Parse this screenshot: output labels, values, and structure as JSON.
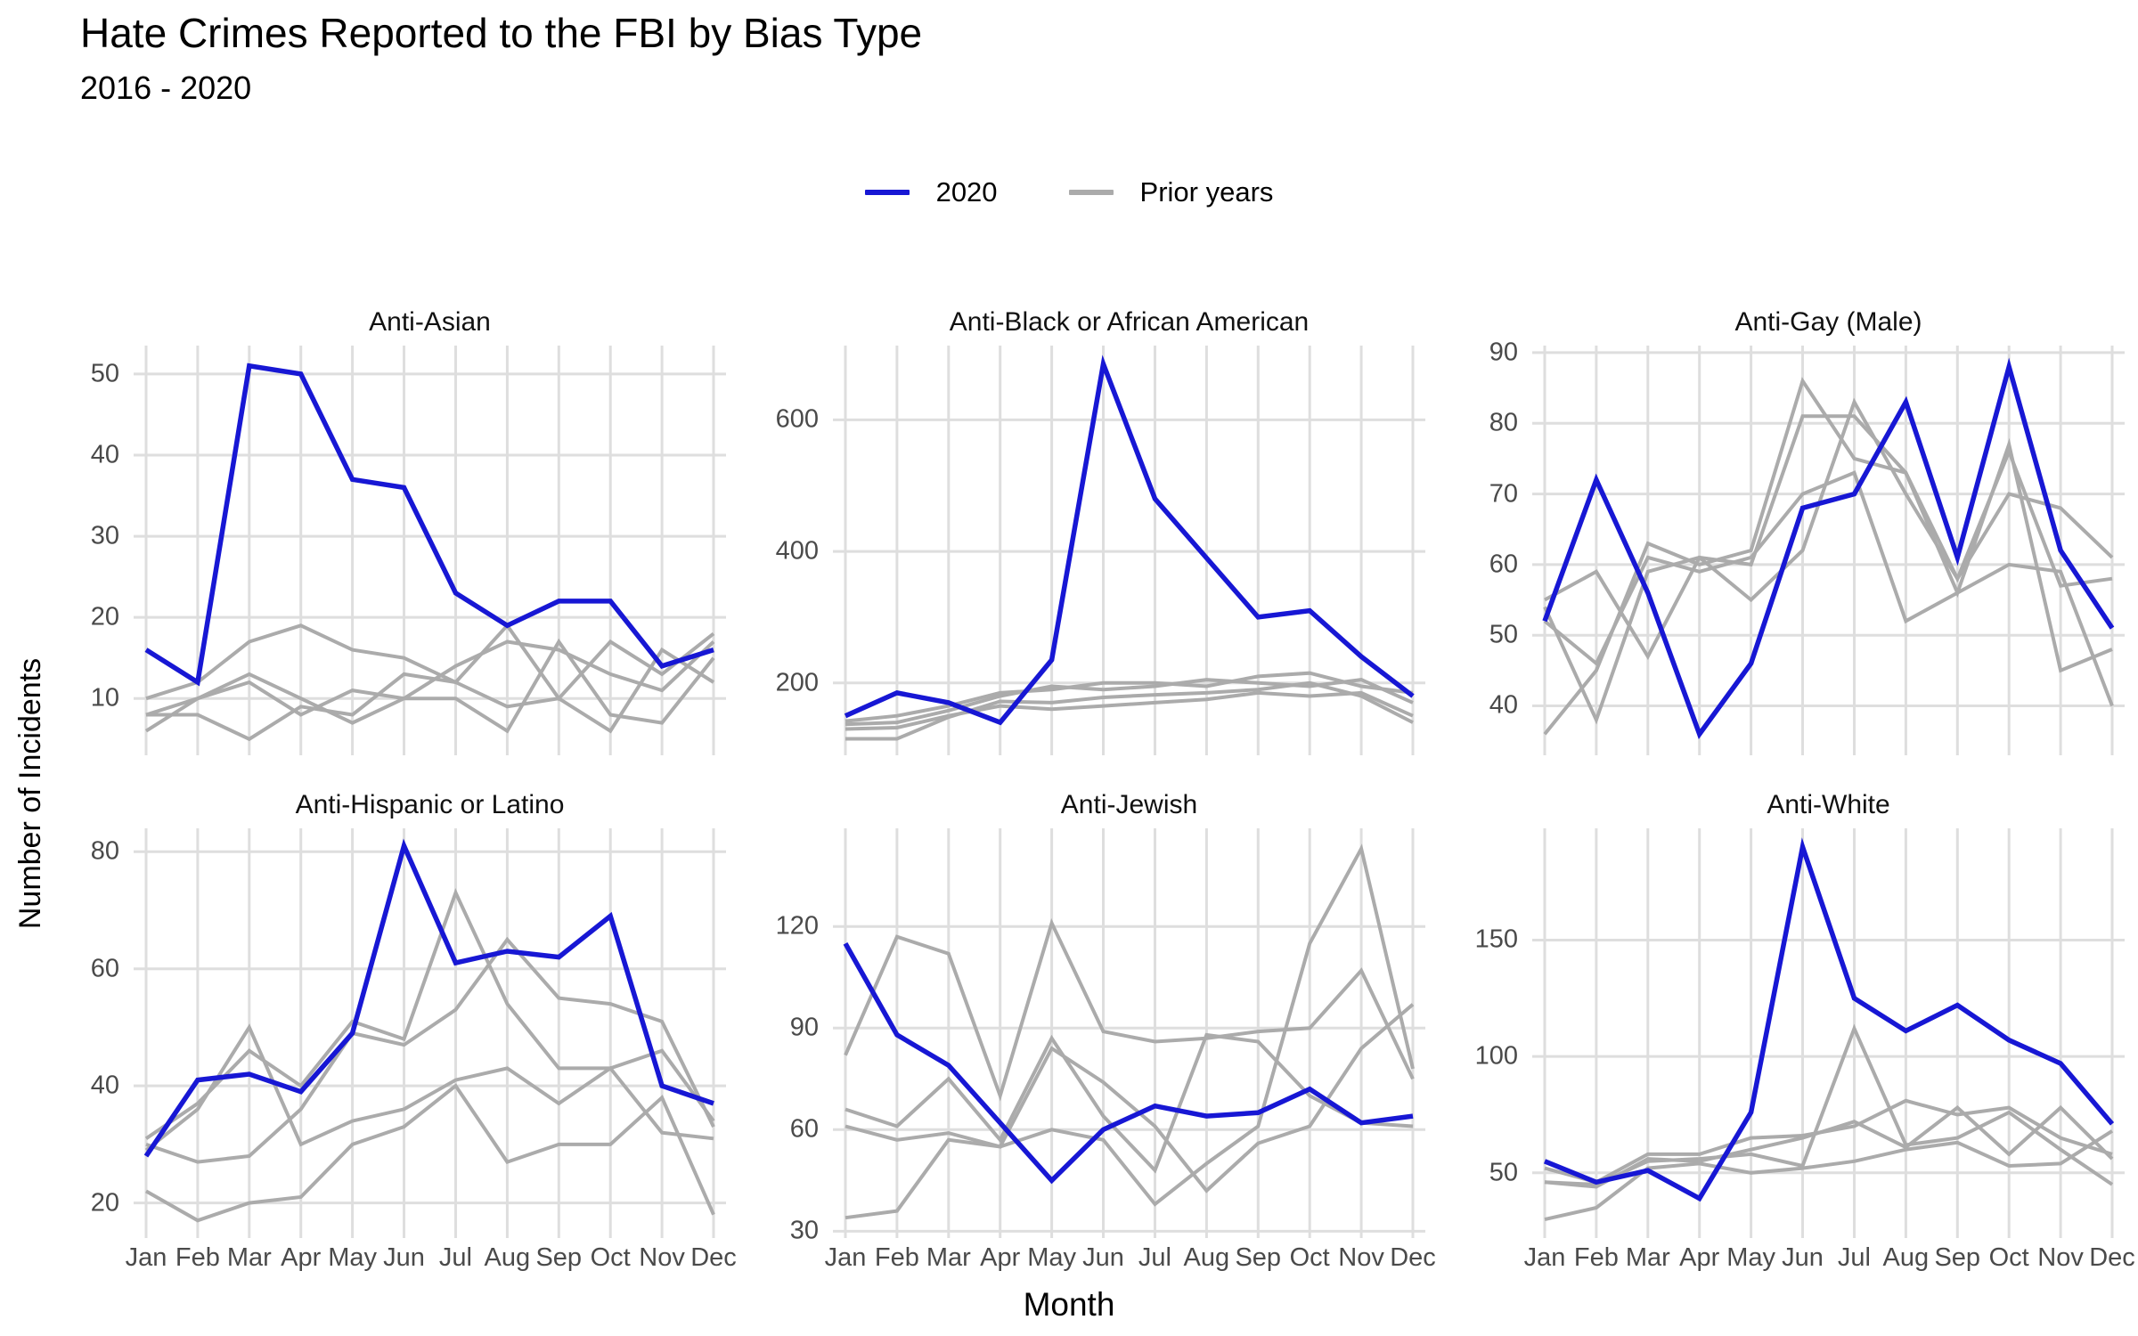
{
  "header": {
    "title": "Hate Crimes Reported to the FBI by Bias Type",
    "subtitle": "2016 - 2020"
  },
  "legend": {
    "items": [
      {
        "label": "2020",
        "color": "#1717D4"
      },
      {
        "label": "Prior years",
        "color": "#ABABAB"
      }
    ]
  },
  "axes": {
    "x_title": "Month",
    "y_title": "Number of Incidents",
    "months": [
      "Jan",
      "Feb",
      "Mar",
      "Apr",
      "May",
      "Jun",
      "Jul",
      "Aug",
      "Sep",
      "Oct",
      "Nov",
      "Dec"
    ]
  },
  "colors": {
    "accent_2020": "#1717D4",
    "prior_gray": "#ABABAB",
    "gridline": "#DEDEDE",
    "axis_text": "#4A4A4A"
  },
  "chart_data": [
    {
      "type": "line",
      "title": "Anti-Asian",
      "categories": [
        "Jan",
        "Feb",
        "Mar",
        "Apr",
        "May",
        "Jun",
        "Jul",
        "Aug",
        "Sep",
        "Oct",
        "Nov",
        "Dec"
      ],
      "ylim": [
        3,
        53.5
      ],
      "yticks": [
        10,
        20,
        30,
        40,
        50
      ],
      "legend_position": "top",
      "grid": true,
      "series": [
        {
          "name": "2020",
          "color": "#1717D4",
          "values": [
            16,
            12,
            51,
            50,
            37,
            36,
            23,
            19,
            22,
            22,
            14,
            16
          ]
        },
        {
          "name": "Prior years",
          "color": "#ABABAB",
          "values": [
            10,
            12,
            17,
            19,
            16,
            15,
            12,
            19,
            10,
            17,
            13,
            18
          ]
        },
        {
          "name": "Prior years",
          "color": "#ABABAB",
          "values": [
            8,
            10,
            12,
            8,
            11,
            10,
            14,
            17,
            16,
            13,
            11,
            17
          ]
        },
        {
          "name": "Prior years",
          "color": "#ABABAB",
          "values": [
            8,
            8,
            5,
            9,
            8,
            13,
            12,
            9,
            10,
            6,
            16,
            12
          ]
        },
        {
          "name": "Prior years",
          "color": "#ABABAB",
          "values": [
            6,
            10,
            13,
            10,
            7,
            10,
            10,
            6,
            17,
            8,
            7,
            15
          ]
        }
      ]
    },
    {
      "type": "line",
      "title": "Anti-Black or African American",
      "categories": [
        "Jan",
        "Feb",
        "Mar",
        "Apr",
        "May",
        "Jun",
        "Jul",
        "Aug",
        "Sep",
        "Oct",
        "Nov",
        "Dec"
      ],
      "ylim": [
        90,
        713
      ],
      "yticks": [
        200,
        400,
        600
      ],
      "legend_position": "top",
      "grid": true,
      "series": [
        {
          "name": "2020",
          "color": "#1717D4",
          "values": [
            150,
            185,
            170,
            140,
            235,
            685,
            480,
            390,
            300,
            310,
            240,
            180
          ]
        },
        {
          "name": "Prior years",
          "color": "#ABABAB",
          "values": [
            130,
            132,
            150,
            165,
            160,
            165,
            170,
            175,
            185,
            180,
            185,
            150
          ]
        },
        {
          "name": "Prior years",
          "color": "#ABABAB",
          "values": [
            137,
            140,
            158,
            180,
            195,
            190,
            195,
            205,
            200,
            195,
            205,
            170
          ]
        },
        {
          "name": "Prior years",
          "color": "#ABABAB",
          "values": [
            142,
            150,
            165,
            185,
            190,
            200,
            200,
            195,
            210,
            215,
            195,
            185
          ]
        },
        {
          "name": "Prior years",
          "color": "#ABABAB",
          "values": [
            115,
            115,
            148,
            172,
            170,
            178,
            182,
            185,
            190,
            200,
            180,
            140
          ]
        }
      ]
    },
    {
      "type": "line",
      "title": "Anti-Gay (Male)",
      "categories": [
        "Jan",
        "Feb",
        "Mar",
        "Apr",
        "May",
        "Jun",
        "Jul",
        "Aug",
        "Sep",
        "Oct",
        "Nov",
        "Dec"
      ],
      "ylim": [
        33,
        91
      ],
      "yticks": [
        40,
        50,
        60,
        70,
        80,
        90
      ],
      "legend_position": "top",
      "grid": true,
      "series": [
        {
          "name": "2020",
          "color": "#1717D4",
          "values": [
            52,
            72,
            56,
            36,
            46,
            68,
            70,
            83,
            61,
            88,
            62,
            51
          ]
        },
        {
          "name": "Prior years",
          "color": "#ABABAB",
          "values": [
            55,
            59,
            47,
            61,
            60,
            81,
            81,
            73,
            58,
            70,
            68,
            61
          ]
        },
        {
          "name": "Prior years",
          "color": "#ABABAB",
          "values": [
            36,
            45,
            63,
            60,
            62,
            86,
            75,
            73,
            56,
            77,
            45,
            48
          ]
        },
        {
          "name": "Prior years",
          "color": "#ABABAB",
          "values": [
            54,
            38,
            59,
            61,
            55,
            62,
            83,
            70,
            58,
            76,
            57,
            58
          ]
        },
        {
          "name": "Prior years",
          "color": "#ABABAB",
          "values": [
            52,
            46,
            61,
            59,
            61,
            70,
            73,
            52,
            56,
            60,
            59,
            40
          ]
        }
      ]
    },
    {
      "type": "line",
      "title": "Anti-Hispanic or Latino",
      "categories": [
        "Jan",
        "Feb",
        "Mar",
        "Apr",
        "May",
        "Jun",
        "Jul",
        "Aug",
        "Sep",
        "Oct",
        "Nov",
        "Dec"
      ],
      "ylim": [
        14,
        84
      ],
      "yticks": [
        20,
        40,
        60,
        80
      ],
      "legend_position": "top",
      "grid": true,
      "series": [
        {
          "name": "2020",
          "color": "#1717D4",
          "values": [
            28,
            41,
            42,
            39,
            49,
            81,
            61,
            63,
            62,
            69,
            40,
            37
          ]
        },
        {
          "name": "Prior years",
          "color": "#ABABAB",
          "values": [
            31,
            37,
            46,
            40,
            51,
            48,
            73,
            54,
            43,
            43,
            46,
            34
          ]
        },
        {
          "name": "Prior years",
          "color": "#ABABAB",
          "values": [
            30,
            27,
            28,
            36,
            49,
            47,
            53,
            65,
            55,
            54,
            51,
            33
          ]
        },
        {
          "name": "Prior years",
          "color": "#ABABAB",
          "values": [
            29,
            36,
            50,
            30,
            34,
            36,
            41,
            43,
            37,
            43,
            32,
            31
          ]
        },
        {
          "name": "Prior years",
          "color": "#ABABAB",
          "values": [
            22,
            17,
            20,
            21,
            30,
            33,
            40,
            27,
            30,
            30,
            38,
            18
          ]
        }
      ]
    },
    {
      "type": "line",
      "title": "Anti-Jewish",
      "categories": [
        "Jan",
        "Feb",
        "Mar",
        "Apr",
        "May",
        "Jun",
        "Jul",
        "Aug",
        "Sep",
        "Oct",
        "Nov",
        "Dec"
      ],
      "ylim": [
        28,
        149
      ],
      "yticks": [
        30,
        60,
        90,
        120
      ],
      "legend_position": "top",
      "grid": true,
      "series": [
        {
          "name": "2020",
          "color": "#1717D4",
          "values": [
            115,
            88,
            79,
            62,
            45,
            60,
            67,
            64,
            65,
            72,
            62,
            64
          ]
        },
        {
          "name": "Prior years",
          "color": "#ABABAB",
          "values": [
            82,
            117,
            112,
            70,
            121,
            89,
            86,
            87,
            89,
            90,
            107,
            75
          ]
        },
        {
          "name": "Prior years",
          "color": "#ABABAB",
          "values": [
            61,
            57,
            59,
            55,
            84,
            74,
            61,
            42,
            56,
            61,
            84,
            97
          ]
        },
        {
          "name": "Prior years",
          "color": "#ABABAB",
          "values": [
            66,
            61,
            75,
            57,
            87,
            64,
            48,
            88,
            86,
            70,
            62,
            61
          ]
        },
        {
          "name": "Prior years",
          "color": "#ABABAB",
          "values": [
            34,
            36,
            57,
            55,
            60,
            57,
            38,
            50,
            61,
            115,
            143,
            78
          ]
        }
      ]
    },
    {
      "type": "line",
      "title": "Anti-White",
      "categories": [
        "Jan",
        "Feb",
        "Mar",
        "Apr",
        "May",
        "Jun",
        "Jul",
        "Aug",
        "Sep",
        "Oct",
        "Nov",
        "Dec"
      ],
      "ylim": [
        22,
        198
      ],
      "yticks": [
        50,
        100,
        150
      ],
      "legend_position": "top",
      "grid": true,
      "series": [
        {
          "name": "2020",
          "color": "#1717D4",
          "values": [
            55,
            46,
            51,
            39,
            76,
            190,
            125,
            111,
            122,
            107,
            97,
            71
          ]
        },
        {
          "name": "Prior years",
          "color": "#ABABAB",
          "values": [
            52,
            46,
            58,
            58,
            65,
            66,
            70,
            81,
            75,
            78,
            65,
            58
          ]
        },
        {
          "name": "Prior years",
          "color": "#ABABAB",
          "values": [
            46,
            44,
            56,
            55,
            60,
            65,
            72,
            61,
            78,
            58,
            78,
            56
          ]
        },
        {
          "name": "Prior years",
          "color": "#ABABAB",
          "values": [
            46,
            45,
            55,
            56,
            58,
            53,
            112,
            62,
            65,
            76,
            60,
            45
          ]
        },
        {
          "name": "Prior years",
          "color": "#ABABAB",
          "values": [
            30,
            35,
            52,
            54,
            50,
            52,
            55,
            60,
            63,
            53,
            54,
            68
          ]
        }
      ]
    }
  ]
}
